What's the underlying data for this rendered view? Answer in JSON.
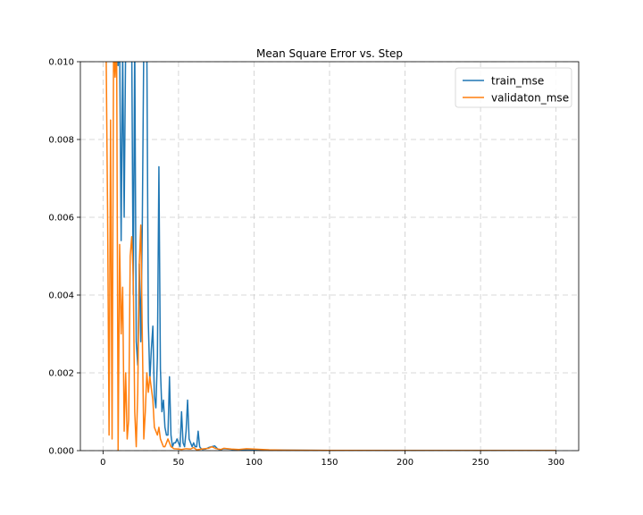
{
  "chart_data": {
    "type": "line",
    "title": "Mean Square Error vs. Step",
    "xlabel": "",
    "ylabel": "",
    "xlim": [
      -15,
      315
    ],
    "ylim": [
      0,
      0.01
    ],
    "x_ticks": [
      0,
      50,
      100,
      150,
      200,
      250,
      300
    ],
    "x_tick_labels": [
      "0",
      "50",
      "100",
      "150",
      "200",
      "250",
      "300"
    ],
    "y_ticks": [
      0,
      0.002,
      0.004,
      0.006,
      0.008,
      0.01
    ],
    "y_tick_labels": [
      "0.000",
      "0.002",
      "0.004",
      "0.006",
      "0.008",
      "0.010"
    ],
    "grid": true,
    "legend_position": "top-right",
    "series": [
      {
        "name": "train_mse",
        "color": "#1f77b4",
        "points": [
          [
            7,
            0.0105
          ],
          [
            8,
            0.0098
          ],
          [
            9,
            0.0105
          ],
          [
            10,
            0.0099
          ],
          [
            11,
            0.0105
          ],
          [
            12,
            0.0054
          ],
          [
            13,
            0.0103
          ],
          [
            14,
            0.006
          ],
          [
            15,
            0.0105
          ],
          [
            17,
            0.0105
          ],
          [
            19,
            0.0105
          ],
          [
            20,
            0.004
          ],
          [
            21,
            0.0105
          ],
          [
            22,
            0.0028
          ],
          [
            23,
            0.0022
          ],
          [
            24,
            0.0048
          ],
          [
            25,
            0.0028
          ],
          [
            26,
            0.0058
          ],
          [
            27,
            0.0105
          ],
          [
            28,
            0.0105
          ],
          [
            29,
            0.0105
          ],
          [
            30,
            0.0033
          ],
          [
            31,
            0.0018
          ],
          [
            32,
            0.0026
          ],
          [
            33,
            0.0032
          ],
          [
            34,
            0.0014
          ],
          [
            35,
            0.0011
          ],
          [
            36,
            0.0024
          ],
          [
            37,
            0.0073
          ],
          [
            38,
            0.0021
          ],
          [
            39,
            0.001
          ],
          [
            40,
            0.0013
          ],
          [
            41,
            0.0006
          ],
          [
            42,
            0.0004
          ],
          [
            43,
            0.0004
          ],
          [
            44,
            0.0019
          ],
          [
            45,
            0.0004
          ],
          [
            46,
            0.0001
          ],
          [
            47,
            0.0002
          ],
          [
            48,
            0.0002
          ],
          [
            49,
            0.0003
          ],
          [
            50,
            0.0002
          ],
          [
            51,
            0.0001
          ],
          [
            52,
            0.001
          ],
          [
            53,
            0.0002
          ],
          [
            54,
            0.0001
          ],
          [
            55,
            0.0005
          ],
          [
            56,
            0.0013
          ],
          [
            57,
            0.0003
          ],
          [
            58,
            0.0002
          ],
          [
            59,
            0.0001
          ],
          [
            60,
            0.0002
          ],
          [
            61,
            0.0001
          ],
          [
            62,
            0.0001
          ],
          [
            63,
            0.0005
          ],
          [
            64,
            0.0001
          ],
          [
            65,
            5e-05
          ],
          [
            66,
            3e-05
          ],
          [
            68,
            4e-05
          ],
          [
            70,
            8e-05
          ],
          [
            72,
            0.0001
          ],
          [
            74,
            0.00012
          ],
          [
            76,
            4e-05
          ],
          [
            78,
            2e-05
          ],
          [
            80,
            5e-05
          ],
          [
            85,
            3e-05
          ],
          [
            90,
            2e-05
          ],
          [
            95,
            3e-05
          ],
          [
            100,
            2e-05
          ],
          [
            110,
            1e-05
          ],
          [
            120,
            1e-05
          ],
          [
            150,
            5e-06
          ],
          [
            200,
            3e-06
          ],
          [
            250,
            2e-06
          ],
          [
            300,
            2e-06
          ]
        ]
      },
      {
        "name": "validaton_mse",
        "color": "#ff7f0e",
        "points": [
          [
            2,
            0.0105
          ],
          [
            3,
            0.0062
          ],
          [
            4,
            0.0004
          ],
          [
            5,
            0.0085
          ],
          [
            6,
            0.0003
          ],
          [
            7,
            0.0105
          ],
          [
            8,
            0.0096
          ],
          [
            9,
            0.0105
          ],
          [
            10,
            0.0
          ],
          [
            11,
            0.0053
          ],
          [
            12,
            0.003
          ],
          [
            13,
            0.0042
          ],
          [
            14,
            0.0005
          ],
          [
            15,
            0.002
          ],
          [
            16,
            0.0003
          ],
          [
            17,
            0.0008
          ],
          [
            18,
            0.005
          ],
          [
            19,
            0.0055
          ],
          [
            20,
            0.0045
          ],
          [
            21,
            0.001
          ],
          [
            22,
            0.0001
          ],
          [
            23,
            0.0015
          ],
          [
            24,
            0.0048
          ],
          [
            25,
            0.0058
          ],
          [
            26,
            0.003
          ],
          [
            27,
            0.0003
          ],
          [
            28,
            0.001
          ],
          [
            29,
            0.002
          ],
          [
            30,
            0.0015
          ],
          [
            31,
            0.0019
          ],
          [
            32,
            0.0016
          ],
          [
            33,
            0.0013
          ],
          [
            34,
            0.0006
          ],
          [
            35,
            0.0005
          ],
          [
            36,
            0.0004
          ],
          [
            37,
            0.0006
          ],
          [
            38,
            0.0003
          ],
          [
            39,
            0.0002
          ],
          [
            40,
            0.0001
          ],
          [
            41,
            0.0001
          ],
          [
            42,
            0.0002
          ],
          [
            43,
            0.0003
          ],
          [
            44,
            0.0002
          ],
          [
            45,
            0.0001
          ],
          [
            47,
            5e-05
          ],
          [
            50,
            4e-05
          ],
          [
            52,
            3e-05
          ],
          [
            55,
            5e-05
          ],
          [
            58,
            4e-05
          ],
          [
            60,
            8e-05
          ],
          [
            62,
            2e-05
          ],
          [
            65,
            4e-05
          ],
          [
            70,
            6e-05
          ],
          [
            72,
            0.0001
          ],
          [
            75,
            5e-05
          ],
          [
            78,
            3e-05
          ],
          [
            80,
            6e-05
          ],
          [
            85,
            4e-05
          ],
          [
            90,
            3e-05
          ],
          [
            95,
            5e-05
          ],
          [
            100,
            4e-05
          ],
          [
            110,
            2e-05
          ],
          [
            120,
            1e-05
          ],
          [
            150,
            5e-06
          ],
          [
            200,
            3e-06
          ],
          [
            250,
            2e-06
          ],
          [
            300,
            2e-06
          ]
        ]
      }
    ]
  }
}
